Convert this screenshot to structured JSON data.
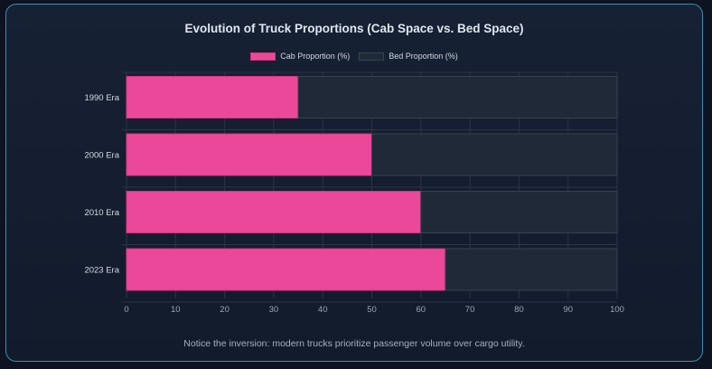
{
  "chart_data": {
    "type": "bar",
    "orientation": "horizontal",
    "stacked": true,
    "title": "Evolution of Truck Proportions (Cab Space vs. Bed Space)",
    "categories": [
      "1990 Era",
      "2000 Era",
      "2010 Era",
      "2023 Era"
    ],
    "series": [
      {
        "name": "Cab Proportion (%)",
        "values": [
          35,
          50,
          60,
          65
        ],
        "color": "#ec4899",
        "border": "#d63384"
      },
      {
        "name": "Bed Proportion (%)",
        "values": [
          65,
          50,
          40,
          35
        ],
        "color": "#1f2937",
        "border": "#374151"
      }
    ],
    "xlim": [
      0,
      100
    ],
    "xticks": [
      0,
      10,
      20,
      30,
      40,
      50,
      60,
      70,
      80,
      90,
      100
    ],
    "xlabel": "",
    "ylabel": "",
    "legend_position": "top-center",
    "grid": true
  },
  "caption": "Notice the inversion: modern trucks prioritize passenger volume over cargo utility.",
  "colors": {
    "background": "#0d1320",
    "card_border": "#3a8fb0",
    "title_text": "#dfe6ef",
    "tick_text": "#9aa6b8",
    "grid": "#2b3546"
  }
}
